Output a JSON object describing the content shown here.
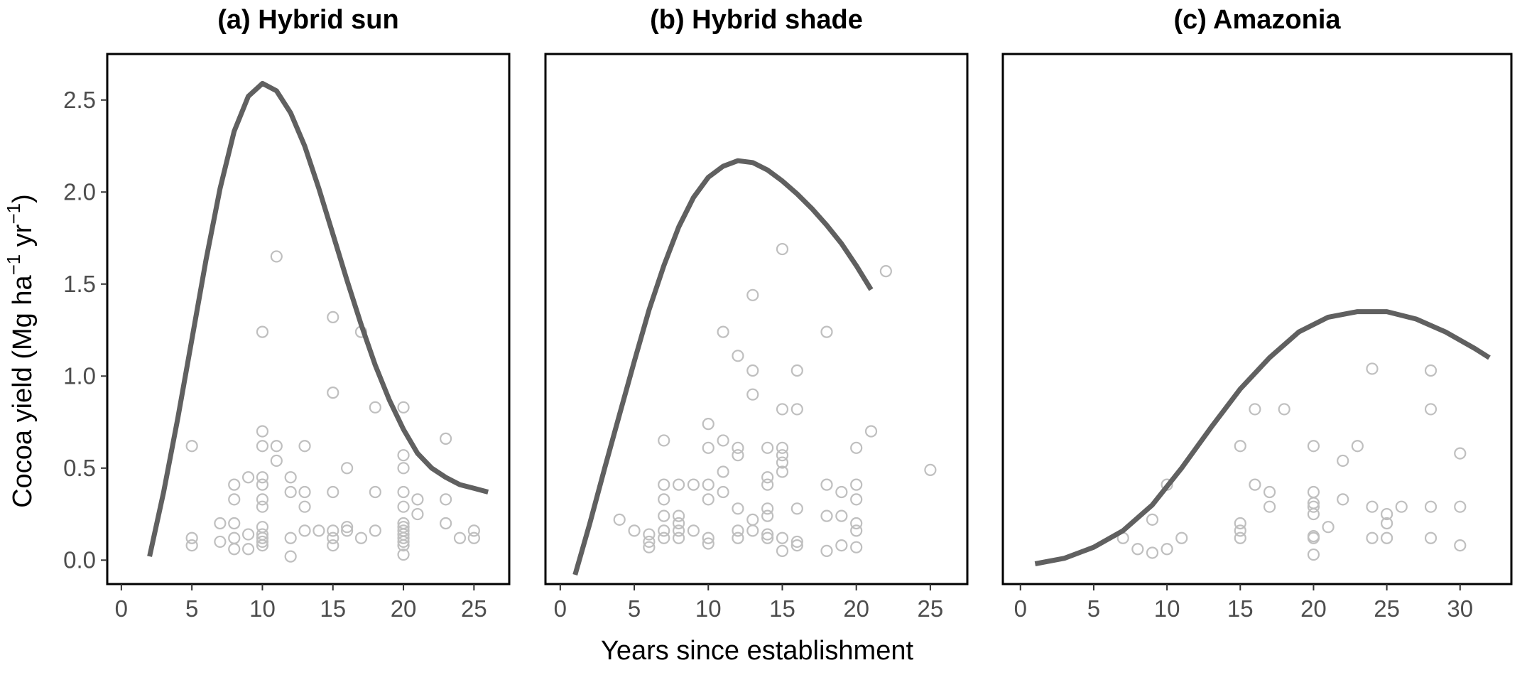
{
  "y_axis_label": {
    "text": "Cocoa yield (Mg  ha",
    "sup1": "−1",
    "mid": "  yr",
    "sup2": "−1",
    "close": ")"
  },
  "x_axis_label": "Years since establishment",
  "colors": {
    "curve": "#606060",
    "points": "#bfbfbf",
    "frame": "#000000",
    "tick_text": "#4d4d4d"
  },
  "chart_data": [
    {
      "type": "scatter",
      "title": "(a) Hybrid sun",
      "xlim": [
        -1,
        27.5
      ],
      "ylim": [
        -0.13,
        2.75
      ],
      "xticks": [
        0,
        5,
        10,
        15,
        20,
        25
      ],
      "yticks": [
        0.0,
        0.5,
        1.0,
        1.5,
        2.0,
        2.5
      ],
      "ytick_labels": [
        "0.0",
        "0.5",
        "1.0",
        "1.5",
        "2.0",
        "2.5"
      ],
      "points": [
        [
          5,
          0.62
        ],
        [
          5,
          0.12
        ],
        [
          5,
          0.08
        ],
        [
          7,
          0.2
        ],
        [
          7,
          0.1
        ],
        [
          8,
          0.41
        ],
        [
          8,
          0.33
        ],
        [
          8,
          0.2
        ],
        [
          8,
          0.12
        ],
        [
          8,
          0.06
        ],
        [
          9,
          0.45
        ],
        [
          9,
          0.14
        ],
        [
          9,
          0.06
        ],
        [
          10,
          1.24
        ],
        [
          10,
          0.7
        ],
        [
          10,
          0.62
        ],
        [
          10,
          0.45
        ],
        [
          10,
          0.41
        ],
        [
          10,
          0.33
        ],
        [
          10,
          0.29
        ],
        [
          10,
          0.18
        ],
        [
          10,
          0.14
        ],
        [
          10,
          0.12
        ],
        [
          10,
          0.1
        ],
        [
          10,
          0.08
        ],
        [
          11,
          1.65
        ],
        [
          11,
          0.62
        ],
        [
          11,
          0.54
        ],
        [
          12,
          0.45
        ],
        [
          12,
          0.37
        ],
        [
          12,
          0.12
        ],
        [
          12,
          0.02
        ],
        [
          13,
          0.62
        ],
        [
          13,
          0.37
        ],
        [
          13,
          0.29
        ],
        [
          13,
          0.16
        ],
        [
          14,
          0.16
        ],
        [
          15,
          1.32
        ],
        [
          15,
          0.91
        ],
        [
          15,
          0.37
        ],
        [
          15,
          0.16
        ],
        [
          15,
          0.12
        ],
        [
          15,
          0.08
        ],
        [
          16,
          0.5
        ],
        [
          16,
          0.18
        ],
        [
          16,
          0.16
        ],
        [
          17,
          1.24
        ],
        [
          17,
          0.12
        ],
        [
          18,
          0.83
        ],
        [
          18,
          0.37
        ],
        [
          18,
          0.16
        ],
        [
          20,
          0.83
        ],
        [
          20,
          0.57
        ],
        [
          20,
          0.5
        ],
        [
          20,
          0.37
        ],
        [
          20,
          0.29
        ],
        [
          20,
          0.2
        ],
        [
          20,
          0.18
        ],
        [
          20,
          0.16
        ],
        [
          20,
          0.14
        ],
        [
          20,
          0.12
        ],
        [
          20,
          0.1
        ],
        [
          20,
          0.08
        ],
        [
          20,
          0.03
        ],
        [
          21,
          0.33
        ],
        [
          21,
          0.25
        ],
        [
          23,
          0.66
        ],
        [
          23,
          0.33
        ],
        [
          23,
          0.2
        ],
        [
          24,
          0.12
        ],
        [
          25,
          0.16
        ],
        [
          25,
          0.12
        ]
      ],
      "curve": [
        [
          2,
          0.02
        ],
        [
          3,
          0.37
        ],
        [
          4,
          0.77
        ],
        [
          5,
          1.2
        ],
        [
          6,
          1.63
        ],
        [
          7,
          2.02
        ],
        [
          8,
          2.33
        ],
        [
          9,
          2.52
        ],
        [
          10,
          2.59
        ],
        [
          11,
          2.55
        ],
        [
          12,
          2.43
        ],
        [
          13,
          2.25
        ],
        [
          14,
          2.02
        ],
        [
          15,
          1.77
        ],
        [
          16,
          1.52
        ],
        [
          17,
          1.28
        ],
        [
          18,
          1.06
        ],
        [
          19,
          0.87
        ],
        [
          20,
          0.71
        ],
        [
          21,
          0.58
        ],
        [
          22,
          0.5
        ],
        [
          23,
          0.45
        ],
        [
          24,
          0.41
        ],
        [
          25,
          0.39
        ],
        [
          26,
          0.37
        ]
      ]
    },
    {
      "type": "scatter",
      "title": "(b) Hybrid shade",
      "xlim": [
        -1,
        27.5
      ],
      "ylim": [
        -0.13,
        2.75
      ],
      "xticks": [
        0,
        5,
        10,
        15,
        20,
        25
      ],
      "yticks": [
        0.0,
        0.5,
        1.0,
        1.5,
        2.0,
        2.5
      ],
      "points": [
        [
          4,
          0.22
        ],
        [
          5,
          0.16
        ],
        [
          6,
          0.14
        ],
        [
          6,
          0.1
        ],
        [
          6,
          0.07
        ],
        [
          7,
          0.65
        ],
        [
          7,
          0.41
        ],
        [
          7,
          0.33
        ],
        [
          7,
          0.24
        ],
        [
          7,
          0.16
        ],
        [
          7,
          0.12
        ],
        [
          8,
          0.41
        ],
        [
          8,
          0.24
        ],
        [
          8,
          0.2
        ],
        [
          8,
          0.16
        ],
        [
          8,
          0.12
        ],
        [
          9,
          0.41
        ],
        [
          9,
          0.16
        ],
        [
          10,
          0.74
        ],
        [
          10,
          0.61
        ],
        [
          10,
          0.41
        ],
        [
          10,
          0.33
        ],
        [
          10,
          0.12
        ],
        [
          10,
          0.09
        ],
        [
          11,
          1.24
        ],
        [
          11,
          0.65
        ],
        [
          11,
          0.48
        ],
        [
          11,
          0.37
        ],
        [
          12,
          1.11
        ],
        [
          12,
          0.61
        ],
        [
          12,
          0.57
        ],
        [
          12,
          0.28
        ],
        [
          12,
          0.16
        ],
        [
          12,
          0.12
        ],
        [
          13,
          1.44
        ],
        [
          13,
          1.03
        ],
        [
          13,
          0.9
        ],
        [
          13,
          0.22
        ],
        [
          13,
          0.16
        ],
        [
          14,
          0.61
        ],
        [
          14,
          0.45
        ],
        [
          14,
          0.41
        ],
        [
          14,
          0.28
        ],
        [
          14,
          0.24
        ],
        [
          14,
          0.14
        ],
        [
          14,
          0.12
        ],
        [
          15,
          1.69
        ],
        [
          15,
          0.82
        ],
        [
          15,
          0.61
        ],
        [
          15,
          0.57
        ],
        [
          15,
          0.53
        ],
        [
          15,
          0.48
        ],
        [
          15,
          0.12
        ],
        [
          15,
          0.05
        ],
        [
          16,
          1.03
        ],
        [
          16,
          0.82
        ],
        [
          16,
          0.28
        ],
        [
          16,
          0.1
        ],
        [
          16,
          0.08
        ],
        [
          18,
          1.24
        ],
        [
          18,
          0.41
        ],
        [
          18,
          0.24
        ],
        [
          18,
          0.05
        ],
        [
          19,
          0.37
        ],
        [
          19,
          0.24
        ],
        [
          19,
          0.08
        ],
        [
          20,
          0.61
        ],
        [
          20,
          0.41
        ],
        [
          20,
          0.33
        ],
        [
          20,
          0.2
        ],
        [
          20,
          0.16
        ],
        [
          20,
          0.07
        ],
        [
          21,
          0.7
        ],
        [
          22,
          1.57
        ],
        [
          25,
          0.49
        ]
      ],
      "curve": [
        [
          1,
          -0.08
        ],
        [
          2,
          0.2
        ],
        [
          3,
          0.5
        ],
        [
          4,
          0.79
        ],
        [
          5,
          1.08
        ],
        [
          6,
          1.36
        ],
        [
          7,
          1.6
        ],
        [
          8,
          1.81
        ],
        [
          9,
          1.97
        ],
        [
          10,
          2.08
        ],
        [
          11,
          2.14
        ],
        [
          12,
          2.17
        ],
        [
          13,
          2.16
        ],
        [
          14,
          2.12
        ],
        [
          15,
          2.06
        ],
        [
          16,
          1.99
        ],
        [
          17,
          1.91
        ],
        [
          18,
          1.82
        ],
        [
          19,
          1.72
        ],
        [
          20,
          1.6
        ],
        [
          21,
          1.47
        ]
      ]
    },
    {
      "type": "scatter",
      "title": "(c) Amazonia",
      "xlim": [
        -1.2,
        33.5
      ],
      "ylim": [
        -0.13,
        2.75
      ],
      "xticks": [
        0,
        5,
        10,
        15,
        20,
        25,
        30
      ],
      "yticks": [
        0.0,
        0.5,
        1.0,
        1.5,
        2.0,
        2.5
      ],
      "points": [
        [
          7,
          0.12
        ],
        [
          8,
          0.06
        ],
        [
          9,
          0.22
        ],
        [
          9,
          0.04
        ],
        [
          10,
          0.41
        ],
        [
          10,
          0.06
        ],
        [
          11,
          0.12
        ],
        [
          15,
          0.62
        ],
        [
          15,
          0.2
        ],
        [
          15,
          0.16
        ],
        [
          15,
          0.12
        ],
        [
          16,
          0.82
        ],
        [
          16,
          0.41
        ],
        [
          17,
          0.37
        ],
        [
          17,
          0.29
        ],
        [
          18,
          0.82
        ],
        [
          20,
          0.62
        ],
        [
          20,
          0.37
        ],
        [
          20,
          0.31
        ],
        [
          20,
          0.29
        ],
        [
          20,
          0.25
        ],
        [
          20,
          0.13
        ],
        [
          20,
          0.12
        ],
        [
          20,
          0.03
        ],
        [
          21,
          0.18
        ],
        [
          22,
          0.54
        ],
        [
          22,
          0.33
        ],
        [
          23,
          0.62
        ],
        [
          24,
          1.04
        ],
        [
          24,
          0.29
        ],
        [
          24,
          0.12
        ],
        [
          25,
          0.25
        ],
        [
          25,
          0.2
        ],
        [
          25,
          0.12
        ],
        [
          26,
          0.29
        ],
        [
          28,
          1.03
        ],
        [
          28,
          0.82
        ],
        [
          28,
          0.29
        ],
        [
          28,
          0.12
        ],
        [
          30,
          0.58
        ],
        [
          30,
          0.29
        ],
        [
          30,
          0.08
        ]
      ],
      "curve": [
        [
          1,
          -0.02
        ],
        [
          3,
          0.01
        ],
        [
          5,
          0.07
        ],
        [
          7,
          0.16
        ],
        [
          9,
          0.3
        ],
        [
          11,
          0.5
        ],
        [
          13,
          0.72
        ],
        [
          15,
          0.93
        ],
        [
          17,
          1.1
        ],
        [
          19,
          1.24
        ],
        [
          21,
          1.32
        ],
        [
          23,
          1.35
        ],
        [
          25,
          1.35
        ],
        [
          27,
          1.31
        ],
        [
          29,
          1.24
        ],
        [
          31,
          1.15
        ],
        [
          32,
          1.1
        ]
      ]
    }
  ]
}
